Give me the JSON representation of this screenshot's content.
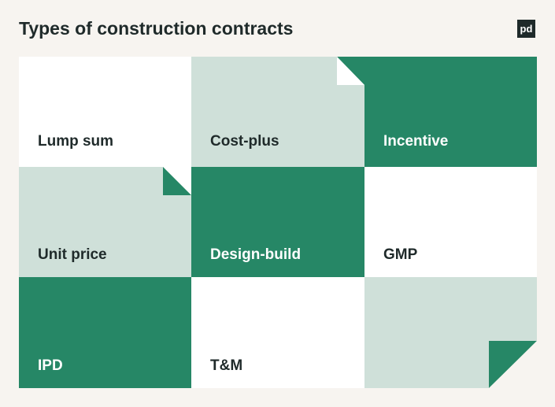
{
  "header": {
    "title": "Types of construction contracts",
    "logo": "pd"
  },
  "cells": [
    {
      "label": "Lump sum"
    },
    {
      "label": "Cost-plus"
    },
    {
      "label": "Incentive"
    },
    {
      "label": "Unit price"
    },
    {
      "label": "Design-build"
    },
    {
      "label": "GMP"
    },
    {
      "label": "IPD"
    },
    {
      "label": "T&M"
    }
  ]
}
